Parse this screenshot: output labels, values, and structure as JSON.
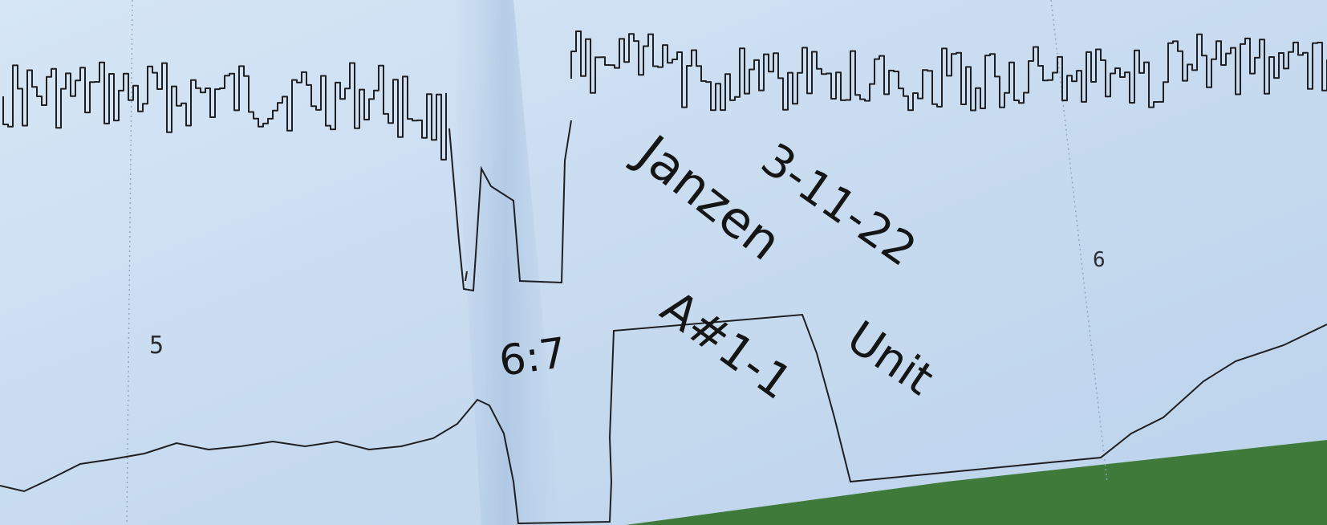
{
  "photo": {
    "subject": "fetal-monitor-strip",
    "colors": {
      "paper": "#cfe0f2",
      "paper_shadow": "#a9c3df",
      "background": "#3f7a3a",
      "trace_ink": "#1f1f22",
      "handwriting_ink": "#141414"
    },
    "printed_marks": {
      "minute_left": "5",
      "minute_right": "6"
    },
    "handwriting": {
      "date": "3-11-22",
      "name": "Janzen",
      "bed": "A#1-1",
      "unit": "Unit",
      "time": "6:7"
    }
  }
}
